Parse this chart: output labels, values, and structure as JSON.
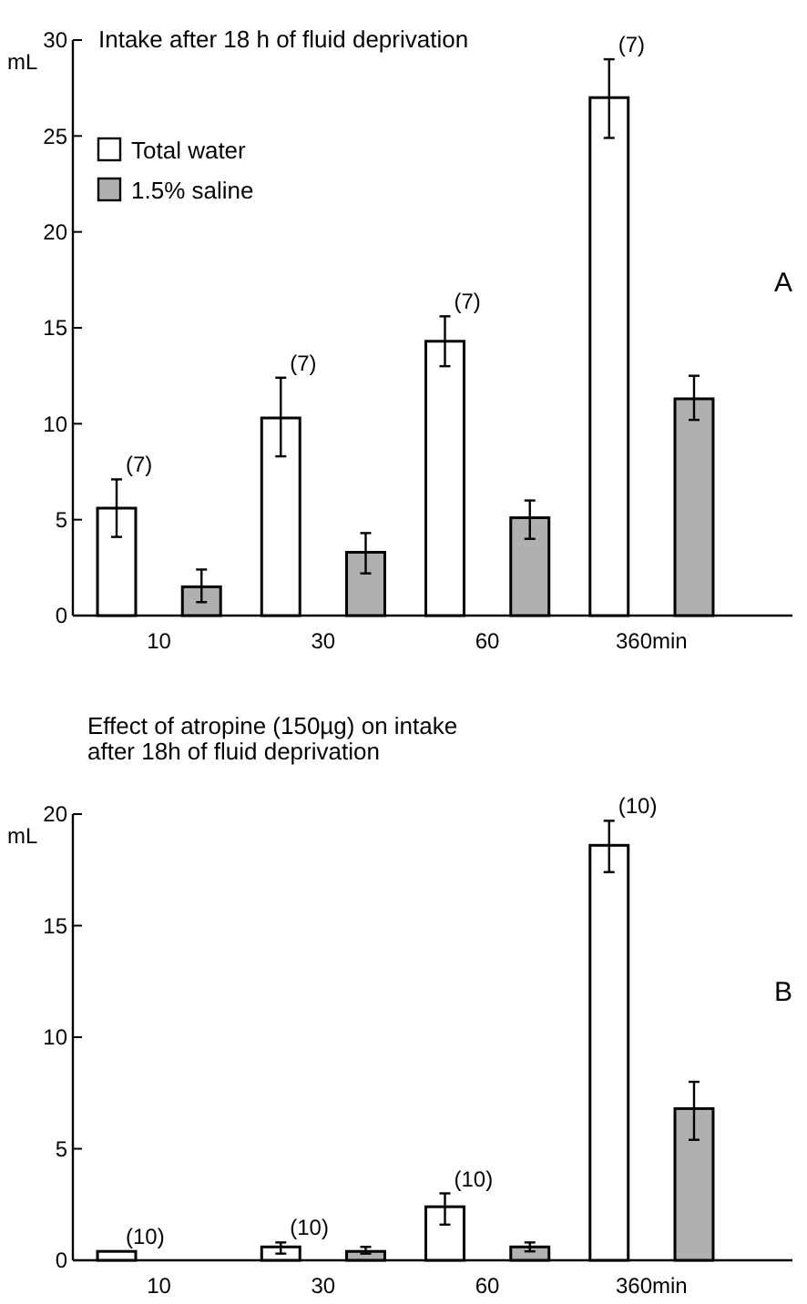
{
  "chart_data": [
    {
      "type": "bar",
      "title": "Intake after 18 h of fluid deprivation",
      "ylabel": "mL",
      "categories": [
        "10",
        "30",
        "60",
        "360min"
      ],
      "ylim": [
        0,
        30
      ],
      "yticks": [
        0,
        5,
        10,
        15,
        20,
        25,
        30
      ],
      "legend": "top left",
      "grid": false,
      "series": [
        {
          "name": "Total water",
          "color": "#ffffff",
          "values": [
            5.6,
            10.3,
            14.3,
            27.0
          ],
          "errors": [
            [
              4.1,
              7.1
            ],
            [
              8.3,
              12.4
            ],
            [
              13.0,
              15.6
            ],
            [
              24.9,
              29.0
            ]
          ]
        },
        {
          "name": "1.5% saline",
          "color": "#b0b0b0",
          "values": [
            1.5,
            3.3,
            5.1,
            11.3
          ],
          "errors": [
            [
              0.7,
              2.4
            ],
            [
              2.2,
              4.3
            ],
            [
              4.0,
              6.0
            ],
            [
              10.2,
              12.5
            ]
          ]
        }
      ],
      "annotations": [
        "(7)",
        "(7)",
        "(7)",
        "(7)",
        "A"
      ]
    },
    {
      "type": "bar",
      "title": "Effect of atropine (150µg) on intake after 18h of fluid deprivation",
      "ylabel": "mL",
      "categories": [
        "10",
        "30",
        "60",
        "360min"
      ],
      "ylim": [
        0,
        20
      ],
      "yticks": [
        0,
        5,
        10,
        15,
        20
      ],
      "legend": false,
      "grid": false,
      "series": [
        {
          "color": "#ffffff",
          "values": [
            0.4,
            0.6,
            2.4,
            18.6
          ],
          "errors": [
            null,
            [
              0.3,
              0.8
            ],
            [
              1.6,
              3.0
            ],
            [
              17.4,
              19.7
            ]
          ]
        },
        {
          "color": "#b0b0b0",
          "values": [
            0,
            0.4,
            0.6,
            6.8
          ],
          "errors": [
            null,
            [
              0.3,
              0.6
            ],
            [
              0.4,
              0.8
            ],
            [
              5.4,
              8.0
            ]
          ]
        }
      ],
      "annotations": [
        "(10)",
        "(10)",
        "(10)",
        "(10)",
        "B"
      ]
    }
  ]
}
